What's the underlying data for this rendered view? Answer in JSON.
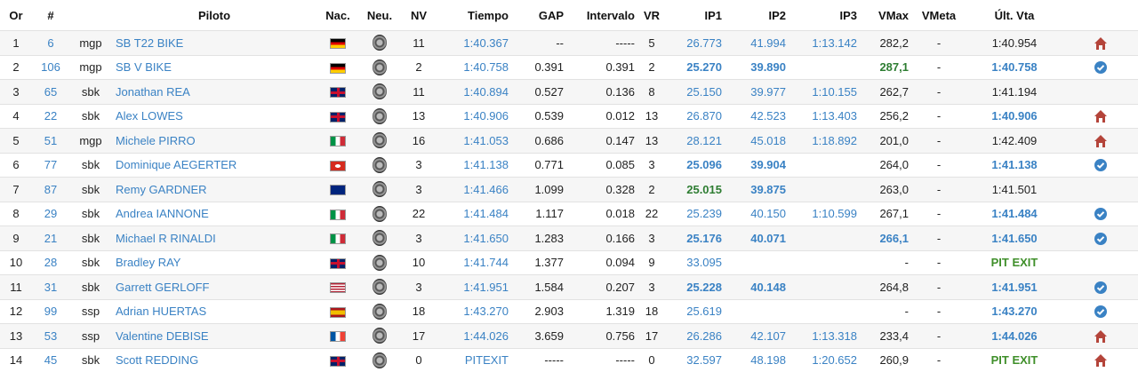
{
  "headers": {
    "or": "Or",
    "num": "#",
    "cat": "",
    "piloto": "Piloto",
    "nac": "Nac.",
    "neu": "Neu.",
    "nv": "NV",
    "tiempo": "Tiempo",
    "gap": "GAP",
    "intervalo": "Intervalo",
    "vr": "VR",
    "ip1": "IP1",
    "ip2": "IP2",
    "ip3": "IP3",
    "vmax": "VMax",
    "vmeta": "VMeta",
    "ultvta": "Últ. Vta"
  },
  "rows": [
    {
      "or": "1",
      "num": "6",
      "cat": "mgp",
      "piloto": "SB T22 BIKE",
      "nac": "de",
      "nv": "11",
      "tiempo": "1:40.367",
      "gap": "--",
      "intervalo": "-----",
      "vr": "5",
      "ip1": "26.773",
      "ip2": "41.994",
      "ip3": "1:13.142",
      "vmax": "282,2",
      "vmeta": "-",
      "ultvta": "1:40.954",
      "ip1s": "n",
      "ip2s": "n",
      "vmaxs": "p",
      "ultvtas": "p",
      "icon": "home"
    },
    {
      "or": "2",
      "num": "106",
      "cat": "mgp",
      "piloto": "SB V BIKE",
      "nac": "de",
      "nv": "2",
      "tiempo": "1:40.758",
      "gap": "0.391",
      "intervalo": "0.391",
      "vr": "2",
      "ip1": "25.270",
      "ip2": "39.890",
      "ip3": "",
      "vmax": "287,1",
      "vmeta": "-",
      "ultvta": "1:40.758",
      "ip1s": "b",
      "ip2s": "b",
      "vmaxs": "g",
      "ultvtas": "b",
      "icon": "check"
    },
    {
      "or": "3",
      "num": "65",
      "cat": "sbk",
      "piloto": "Jonathan REA",
      "nac": "gb",
      "nv": "11",
      "tiempo": "1:40.894",
      "gap": "0.527",
      "intervalo": "0.136",
      "vr": "8",
      "ip1": "25.150",
      "ip2": "39.977",
      "ip3": "1:10.155",
      "vmax": "262,7",
      "vmeta": "-",
      "ultvta": "1:41.194",
      "ip1s": "n",
      "ip2s": "n",
      "vmaxs": "p",
      "ultvtas": "p",
      "icon": ""
    },
    {
      "or": "4",
      "num": "22",
      "cat": "sbk",
      "piloto": "Alex LOWES",
      "nac": "gb",
      "nv": "13",
      "tiempo": "1:40.906",
      "gap": "0.539",
      "intervalo": "0.012",
      "vr": "13",
      "ip1": "26.870",
      "ip2": "42.523",
      "ip3": "1:13.403",
      "vmax": "256,2",
      "vmeta": "-",
      "ultvta": "1:40.906",
      "ip1s": "n",
      "ip2s": "n",
      "vmaxs": "p",
      "ultvtas": "b",
      "icon": "home"
    },
    {
      "or": "5",
      "num": "51",
      "cat": "mgp",
      "piloto": "Michele PIRRO",
      "nac": "it",
      "nv": "16",
      "tiempo": "1:41.053",
      "gap": "0.686",
      "intervalo": "0.147",
      "vr": "13",
      "ip1": "28.121",
      "ip2": "45.018",
      "ip3": "1:18.892",
      "vmax": "201,0",
      "vmeta": "-",
      "ultvta": "1:42.409",
      "ip1s": "n",
      "ip2s": "n",
      "vmaxs": "p",
      "ultvtas": "p",
      "icon": "home"
    },
    {
      "or": "6",
      "num": "77",
      "cat": "sbk",
      "piloto": "Dominique AEGERTER",
      "nac": "ch",
      "nv": "3",
      "tiempo": "1:41.138",
      "gap": "0.771",
      "intervalo": "0.085",
      "vr": "3",
      "ip1": "25.096",
      "ip2": "39.904",
      "ip3": "",
      "vmax": "264,0",
      "vmeta": "-",
      "ultvta": "1:41.138",
      "ip1s": "b",
      "ip2s": "b",
      "vmaxs": "p",
      "ultvtas": "b",
      "icon": "check"
    },
    {
      "or": "7",
      "num": "87",
      "cat": "sbk",
      "piloto": "Remy GARDNER",
      "nac": "au",
      "nv": "3",
      "tiempo": "1:41.466",
      "gap": "1.099",
      "intervalo": "0.328",
      "vr": "2",
      "ip1": "25.015",
      "ip2": "39.875",
      "ip3": "",
      "vmax": "263,0",
      "vmeta": "-",
      "ultvta": "1:41.501",
      "ip1s": "g",
      "ip2s": "b",
      "vmaxs": "p",
      "ultvtas": "p",
      "icon": ""
    },
    {
      "or": "8",
      "num": "29",
      "cat": "sbk",
      "piloto": "Andrea IANNONE",
      "nac": "it",
      "nv": "22",
      "tiempo": "1:41.484",
      "gap": "1.117",
      "intervalo": "0.018",
      "vr": "22",
      "ip1": "25.239",
      "ip2": "40.150",
      "ip3": "1:10.599",
      "vmax": "267,1",
      "vmeta": "-",
      "ultvta": "1:41.484",
      "ip1s": "n",
      "ip2s": "n",
      "vmaxs": "p",
      "ultvtas": "b",
      "icon": "check"
    },
    {
      "or": "9",
      "num": "21",
      "cat": "sbk",
      "piloto": "Michael R RINALDI",
      "nac": "it",
      "nv": "3",
      "tiempo": "1:41.650",
      "gap": "1.283",
      "intervalo": "0.166",
      "vr": "3",
      "ip1": "25.176",
      "ip2": "40.071",
      "ip3": "",
      "vmax": "266,1",
      "vmeta": "-",
      "ultvta": "1:41.650",
      "ip1s": "b",
      "ip2s": "b",
      "vmaxs": "b",
      "ultvtas": "b",
      "icon": "check"
    },
    {
      "or": "10",
      "num": "28",
      "cat": "sbk",
      "piloto": "Bradley RAY",
      "nac": "gb",
      "nv": "10",
      "tiempo": "1:41.744",
      "gap": "1.377",
      "intervalo": "0.094",
      "vr": "9",
      "ip1": "33.095",
      "ip2": "",
      "ip3": "",
      "vmax": "-",
      "vmeta": "-",
      "ultvta": "PIT EXIT",
      "ip1s": "n",
      "ip2s": "n",
      "vmaxs": "p",
      "ultvtas": "pit",
      "icon": ""
    },
    {
      "or": "11",
      "num": "31",
      "cat": "sbk",
      "piloto": "Garrett GERLOFF",
      "nac": "us",
      "nv": "3",
      "tiempo": "1:41.951",
      "gap": "1.584",
      "intervalo": "0.207",
      "vr": "3",
      "ip1": "25.228",
      "ip2": "40.148",
      "ip3": "",
      "vmax": "264,8",
      "vmeta": "-",
      "ultvta": "1:41.951",
      "ip1s": "b",
      "ip2s": "b",
      "vmaxs": "p",
      "ultvtas": "b",
      "icon": "check"
    },
    {
      "or": "12",
      "num": "99",
      "cat": "ssp",
      "piloto": "Adrian HUERTAS",
      "nac": "es",
      "nv": "18",
      "tiempo": "1:43.270",
      "gap": "2.903",
      "intervalo": "1.319",
      "vr": "18",
      "ip1": "25.619",
      "ip2": "",
      "ip3": "",
      "vmax": "-",
      "vmeta": "-",
      "ultvta": "1:43.270",
      "ip1s": "n",
      "ip2s": "n",
      "vmaxs": "p",
      "ultvtas": "b",
      "icon": "check"
    },
    {
      "or": "13",
      "num": "53",
      "cat": "ssp",
      "piloto": "Valentine DEBISE",
      "nac": "fr",
      "nv": "17",
      "tiempo": "1:44.026",
      "gap": "3.659",
      "intervalo": "0.756",
      "vr": "17",
      "ip1": "26.286",
      "ip2": "42.107",
      "ip3": "1:13.318",
      "vmax": "233,4",
      "vmeta": "-",
      "ultvta": "1:44.026",
      "ip1s": "n",
      "ip2s": "n",
      "vmaxs": "p",
      "ultvtas": "b",
      "icon": "home"
    },
    {
      "or": "14",
      "num": "45",
      "cat": "sbk",
      "piloto": "Scott REDDING",
      "nac": "gb",
      "nv": "0",
      "tiempo": "PITEXIT",
      "gap": "-----",
      "intervalo": "-----",
      "vr": "0",
      "ip1": "32.597",
      "ip2": "48.198",
      "ip3": "1:20.652",
      "vmax": "260,9",
      "vmeta": "-",
      "ultvta": "PIT EXIT",
      "ip1s": "n",
      "ip2s": "n",
      "vmaxs": "p",
      "ultvtas": "pit",
      "icon": "home"
    }
  ],
  "colors": {
    "link": "#3a82c4",
    "best": "#2e7d32",
    "pit": "#3f8f2a",
    "home": "#b4443a",
    "check": "#3a82c4"
  }
}
